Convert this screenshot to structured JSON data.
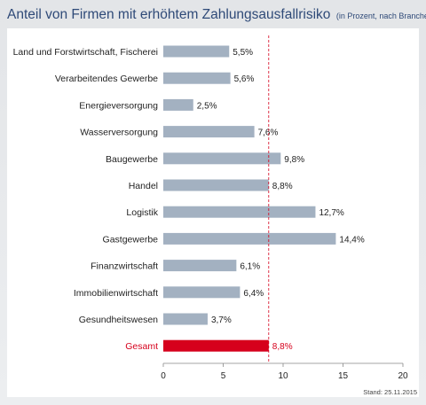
{
  "title": "Anteil von Firmen mit erhöhtem Zahlungsausfallrisiko",
  "subtitle": "(in Prozent, nach Branchen)",
  "stand": "Stand: 25.11.2015",
  "colors": {
    "bar": "#a3b1c1",
    "total": "#d6001c",
    "reference": "#d6001c",
    "title": "#2f4a78"
  },
  "chart_data": {
    "type": "bar",
    "orientation": "horizontal",
    "categories": [
      "Land und Forstwirtschaft, Fischerei",
      "Verarbeitendes Gewerbe",
      "Energieversorgung",
      "Wasserversorgung",
      "Baugewerbe",
      "Handel",
      "Logistik",
      "Gastgewerbe",
      "Finanzwirtschaft",
      "Immobilienwirtschaft",
      "Gesundheitswesen",
      "Gesamt"
    ],
    "values": [
      5.5,
      5.6,
      2.5,
      7.6,
      9.8,
      8.8,
      12.7,
      14.4,
      6.1,
      6.4,
      3.7,
      8.8
    ],
    "value_labels": [
      "5,5%",
      "5,6%",
      "2,5%",
      "7,6%",
      "9,8%",
      "8,8%",
      "12,7%",
      "14,4%",
      "6,1%",
      "6,4%",
      "3,7%",
      "8,8%"
    ],
    "highlight_index": 11,
    "reference_value": 8.8,
    "xlim": [
      0,
      20
    ],
    "xticks": [
      0,
      5,
      10,
      15,
      20
    ],
    "xtick_labels": [
      "0",
      "5",
      "10",
      "15",
      "20"
    ],
    "grid": false
  }
}
